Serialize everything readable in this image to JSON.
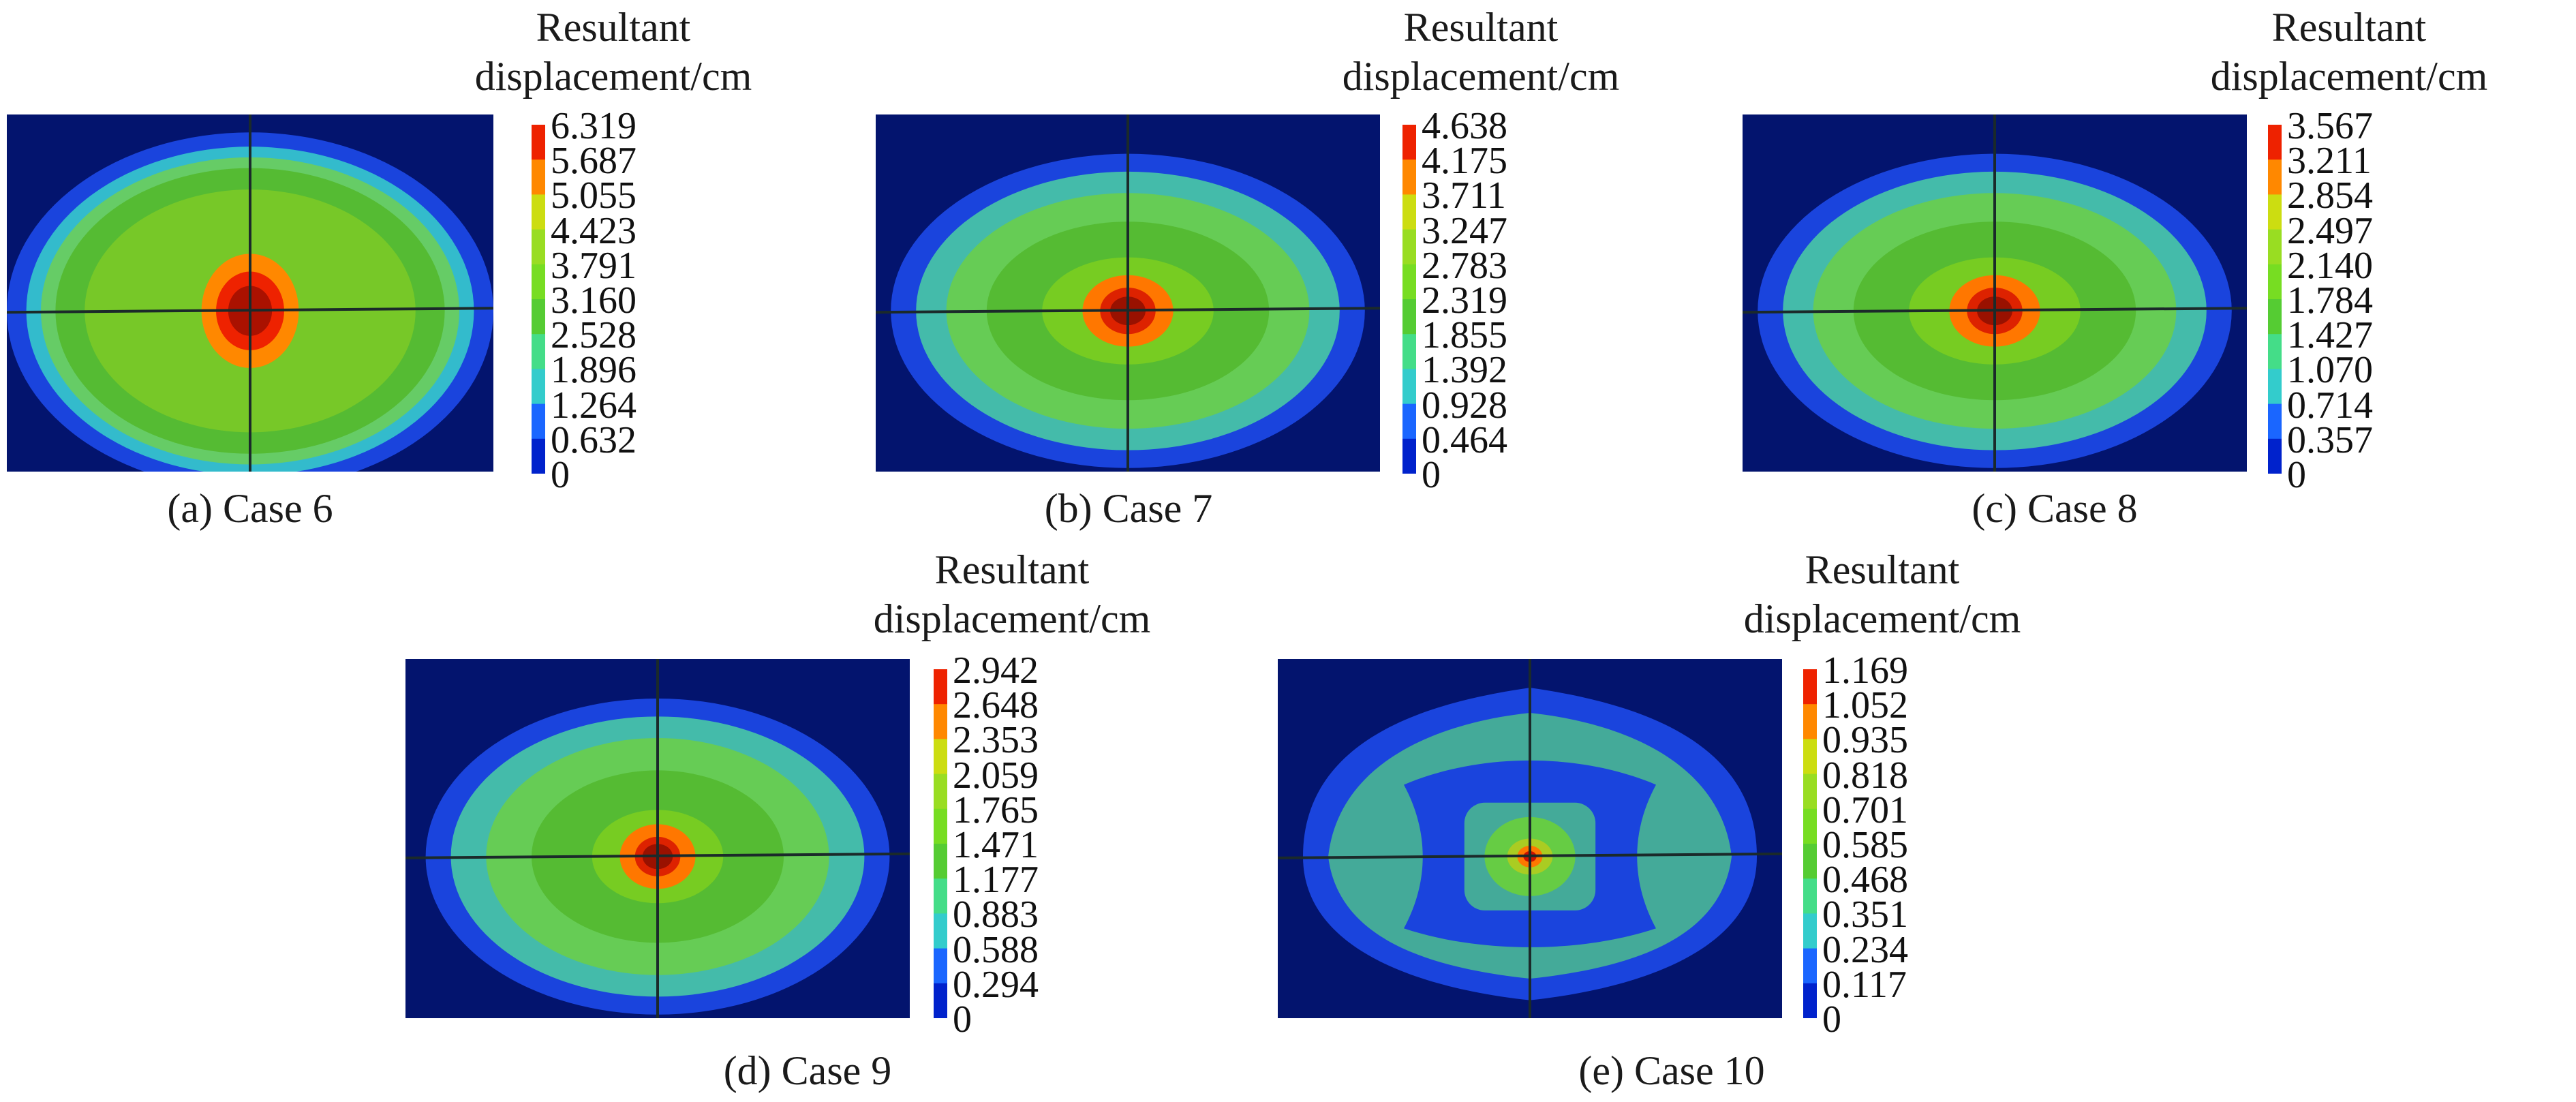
{
  "figure": {
    "legend_title_line1": "Resultant",
    "legend_title_line2": "displacement/cm",
    "palette": [
      "#0022cc",
      "#1a66ff",
      "#33cccc",
      "#44dd88",
      "#55cc33",
      "#77dd22",
      "#99dd22",
      "#ccdd11",
      "#ff8800",
      "#ee2200"
    ],
    "background_color": "#03146e",
    "outer_ring_color": "#1a44dd"
  },
  "panels": [
    {
      "id": "a",
      "caption": "(a) Case 6",
      "ticks": [
        "6.319",
        "5.687",
        "5.055",
        "4.423",
        "3.791",
        "3.160",
        "2.528",
        "1.896",
        "1.264",
        "0.632",
        "0"
      ],
      "max": 6.319,
      "variant": "wide"
    },
    {
      "id": "b",
      "caption": "(b) Case 7",
      "ticks": [
        "4.638",
        "4.175",
        "3.711",
        "3.247",
        "2.783",
        "2.319",
        "1.855",
        "1.392",
        "0.928",
        "0.464",
        "0"
      ],
      "max": 4.638,
      "variant": "standard"
    },
    {
      "id": "c",
      "caption": "(c) Case 8",
      "ticks": [
        "3.567",
        "3.211",
        "2.854",
        "2.497",
        "2.140",
        "1.784",
        "1.427",
        "1.070",
        "0.714",
        "0.357",
        "0"
      ],
      "max": 3.567,
      "variant": "standard"
    },
    {
      "id": "d",
      "caption": "(d) Case 9",
      "ticks": [
        "2.942",
        "2.648",
        "2.353",
        "2.059",
        "1.765",
        "1.471",
        "1.177",
        "0.883",
        "0.588",
        "0.294",
        "0"
      ],
      "max": 2.942,
      "variant": "oval"
    },
    {
      "id": "e",
      "caption": "(e) Case 10",
      "ticks": [
        "1.169",
        "1.052",
        "0.935",
        "0.818",
        "0.701",
        "0.585",
        "0.468",
        "0.351",
        "0.234",
        "0.117",
        "0"
      ],
      "max": 1.169,
      "variant": "pinched"
    }
  ]
}
